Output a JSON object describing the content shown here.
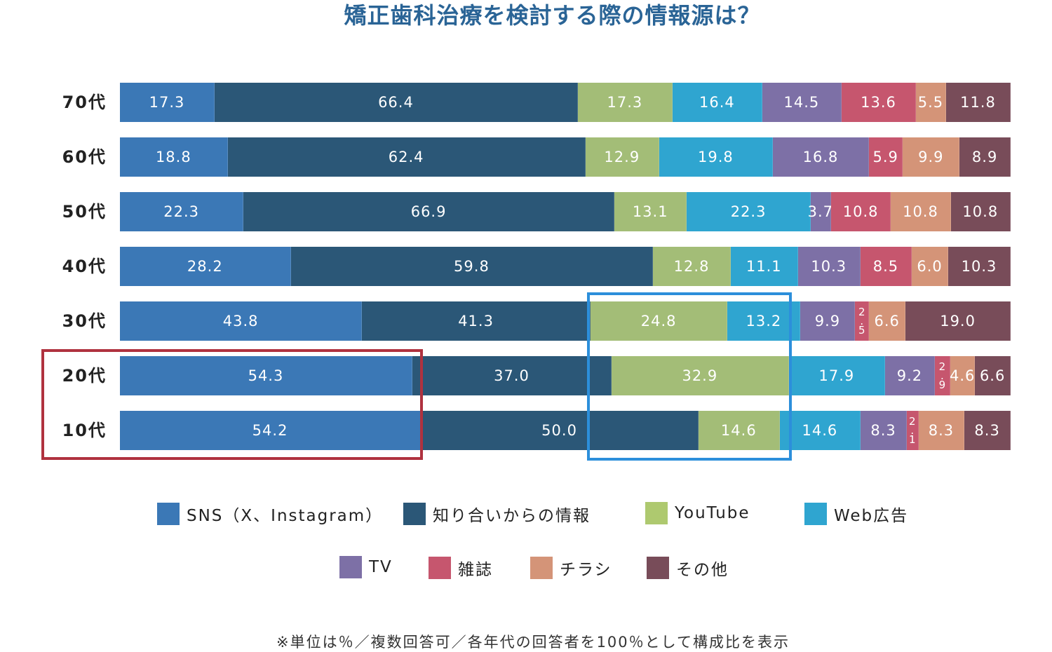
{
  "chart_data": {
    "type": "bar",
    "stacked": true,
    "orientation": "horizontal",
    "normalized": true,
    "title": "矯正歯科治療を検討する際の情報源は？",
    "note": "※単位は％／複数回答可／各年代の回答者を100％として構成比を表示",
    "categories": [
      "70代",
      "60代",
      "50代",
      "40代",
      "30代",
      "20代",
      "10代"
    ],
    "legend_placement": "bottom",
    "series": [
      {
        "name": "SNS（X、Instagram）",
        "color": "#3b78b6",
        "values": [
          17.3,
          18.8,
          22.3,
          28.2,
          43.8,
          54.3,
          54.2
        ]
      },
      {
        "name": "知り合いからの情報",
        "color": "#2b5777",
        "values": [
          66.4,
          62.4,
          66.9,
          59.8,
          41.3,
          37.0,
          50.0
        ]
      },
      {
        "name": "YouTube",
        "color": "#a3bd77",
        "values": [
          17.3,
          12.9,
          13.1,
          12.8,
          24.8,
          32.9,
          14.6
        ]
      },
      {
        "name": "Web広告",
        "color": "#2fa5d0",
        "values": [
          16.4,
          19.8,
          22.3,
          11.1,
          13.2,
          17.9,
          14.6
        ]
      },
      {
        "name": "TV",
        "color": "#7d70a6",
        "values": [
          14.5,
          16.8,
          3.7,
          10.3,
          9.9,
          9.2,
          8.3
        ]
      },
      {
        "name": "雑誌",
        "color": "#c6566e",
        "values": [
          13.6,
          5.9,
          10.8,
          8.5,
          2.5,
          2.9,
          2.1
        ]
      },
      {
        "name": "チラシ",
        "color": "#d49478",
        "values": [
          5.5,
          9.9,
          10.8,
          6.0,
          6.6,
          4.6,
          8.3
        ]
      },
      {
        "name": "その他",
        "color": "#784c59",
        "values": [
          11.8,
          8.9,
          10.8,
          10.3,
          19.0,
          6.6,
          8.3
        ]
      }
    ],
    "highlights": [
      {
        "color": "#b0323f",
        "rows": [
          "20代",
          "10代"
        ],
        "series": [
          "SNS（X、Instagram）"
        ]
      },
      {
        "color": "#2c8fdb",
        "rows": [
          "30代",
          "20代",
          "10代"
        ],
        "series": [
          "YouTube"
        ]
      }
    ]
  }
}
